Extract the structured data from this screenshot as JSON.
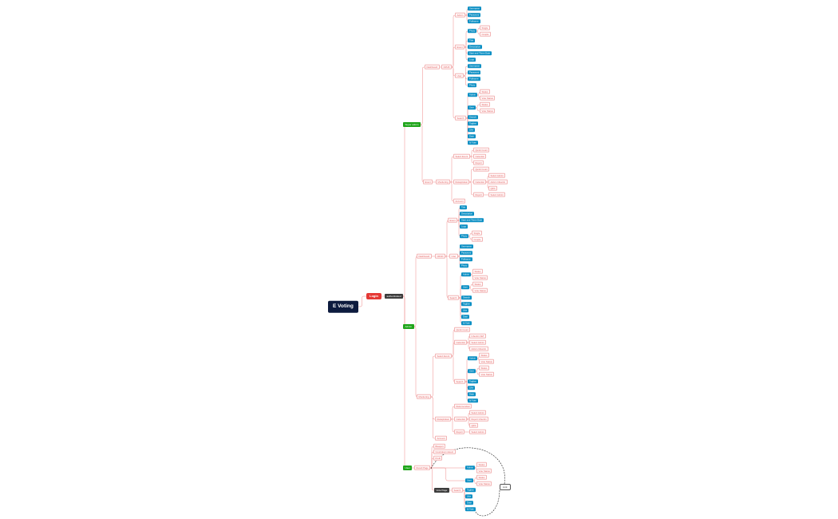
{
  "diagram": {
    "root": "E Voting",
    "login": "Login",
    "authenticated": "authenticated",
    "super_admin": {
      "label": "Super admin",
      "dashboard": {
        "label": "Dashboard",
        "crud": "CRUD",
        "admin": {
          "label": "Admin",
          "items": [
            "Username",
            "Password",
            "Fullname"
          ]
        },
        "event": {
          "label": "Event",
          "photo": {
            "label": "Photo",
            "items": [
              "Single",
              "Couple"
            ]
          },
          "items": [
            "Title",
            "Description",
            "Start and Three Date",
            "Logo"
          ]
        },
        "user": {
          "label": "User",
          "items": [
            "Username",
            "Password",
            "Fullname",
            "Photo"
          ]
        },
        "search": {
          "label": "Search",
          "admin": {
            "label": "Admin",
            "items": [
              "Status",
              "Vote Status"
            ]
          },
          "user": {
            "label": "User",
            "items": [
              "Status",
              "Vote Status"
            ]
          },
          "items": [
            "Search",
            "Tagline",
            "Like",
            "Date",
            "Id Vote"
          ]
        }
      },
      "event": {
        "label": "Event",
        "monitoring": "Monitoring",
        "select_event": {
          "label": "Select Event",
          "items": [
            "Quick Count",
            "Calendar",
            "Report"
          ]
        },
        "rekapitulasi": {
          "label": "Rekapitulasi",
          "quick_count": "Quick Count",
          "calendar": {
            "label": "Calendar",
            "items": [
              "Select Admin",
              "Admin Inbentin",
              "QRC"
            ]
          },
          "report": {
            "label": "Report",
            "items": [
              "Select Admin"
            ]
          }
        },
        "account": "Account"
      }
    },
    "admin": {
      "label": "Admin",
      "dashboard": {
        "label": "Dashboard",
        "event": {
          "label": "Event",
          "items": [
            "Title",
            "Description",
            "Start and Three Date",
            "Logo"
          ],
          "photo": {
            "label": "Photo",
            "items": [
              "Single",
              "Couple"
            ]
          }
        },
        "crud": "CRUD",
        "user": {
          "label": "User",
          "items": [
            "Username",
            "Password",
            "Fullname",
            "Photo"
          ]
        },
        "search": {
          "label": "Search",
          "admin": {
            "label": "Admin",
            "items": [
              "Status",
              "Vote Status"
            ]
          },
          "user": {
            "label": "User",
            "items": [
              "Status",
              "Vote Status"
            ]
          },
          "items": [
            "Search",
            "Tagline",
            "Like",
            "Date",
            "Id Vote"
          ]
        }
      },
      "monitoring": {
        "label": "Monitoring",
        "select_event": {
          "label": "Select Event",
          "quick_count": "Quick Count",
          "calendar": {
            "label": "Calendar",
            "items": [
              "Inbentin VET",
              "Select Admin",
              "Admin Inbentin"
            ]
          },
          "search": {
            "label": "Search",
            "admin": {
              "label": "Admin",
              "items": [
                "Status",
                "Vote Status"
              ]
            },
            "user": {
              "label": "User",
              "items": [
                "Status",
                "Vote Status"
              ]
            },
            "items": [
              "Tagline",
              "Like",
              "Date",
              "Id Vote"
            ]
          }
        },
        "rekapitulasi": {
          "label": "Rekapitulasi",
          "account": "Rekomendasi",
          "calendar": {
            "label": "Calendar",
            "items": [
              "Select Admin",
              "Report Inbentin",
              "QRC"
            ]
          },
          "report": {
            "label": "Report",
            "items": [
              "Select Admin"
            ]
          }
        },
        "account": "Account"
      }
    },
    "user": {
      "label": "User",
      "items": [
        "Bisaport",
        "Countdown detect",
        "Profil"
      ],
      "result_page": {
        "label": "Result Page",
        "admin": {
          "label": "Admin",
          "items": [
            "Status",
            "Vote Status"
          ]
        },
        "user": {
          "label": "User",
          "items": [
            "Status",
            "Vote Status"
          ]
        }
      },
      "vote_page": {
        "label": "Vote Page",
        "search": "Search",
        "items": [
          "Tagline",
          "Like",
          "Date",
          "Id Vote"
        ]
      }
    },
    "note": "Link"
  },
  "colors": {
    "root": "#0d1b3e",
    "login": "#e53935",
    "dark": "#3d3d3d",
    "green": "#1fa51a",
    "blue": "#0b8fc4",
    "red": "#e25d5d",
    "link": "#ef8a8a"
  }
}
